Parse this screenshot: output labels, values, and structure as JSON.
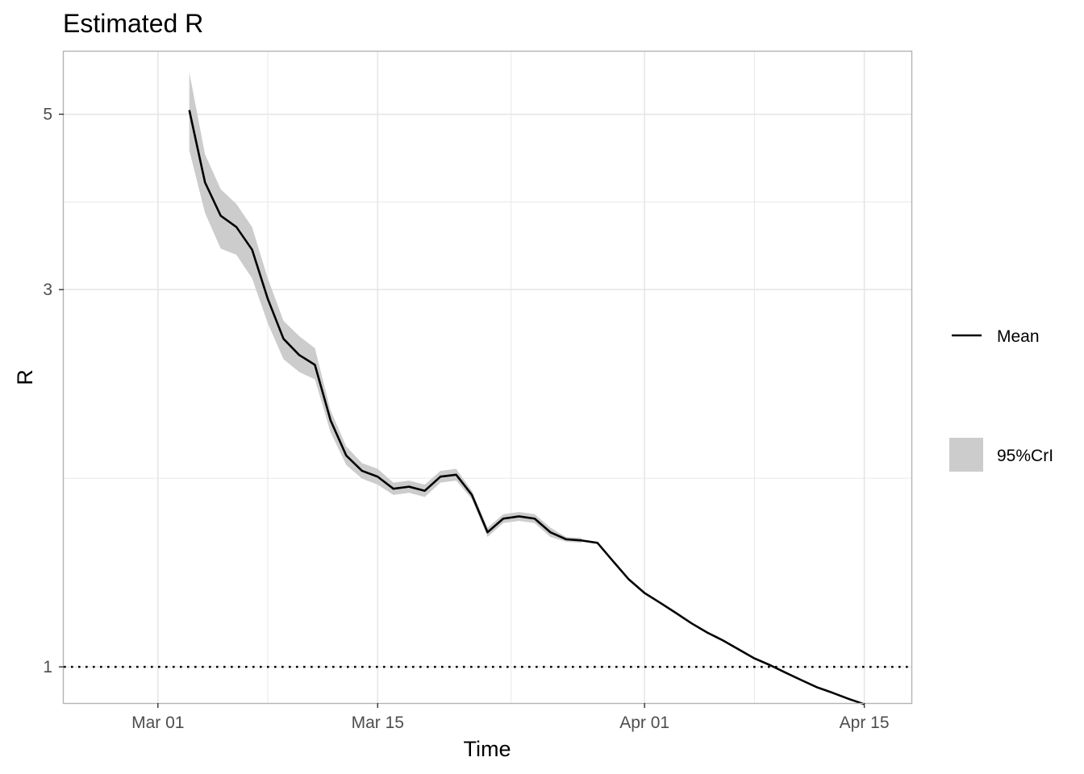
{
  "chart_data": {
    "type": "line",
    "title": "Estimated R",
    "xlabel": "Time",
    "ylabel": "R",
    "y_scale": "log",
    "xlim": [
      "2020-02-24",
      "2020-04-18"
    ],
    "ylim": [
      0.9,
      6.0
    ],
    "x_ticks": [
      {
        "date": "2020-03-01",
        "label": "Mar 01"
      },
      {
        "date": "2020-03-15",
        "label": "Mar 15"
      },
      {
        "date": "2020-04-01",
        "label": "Apr 01"
      },
      {
        "date": "2020-04-15",
        "label": "Apr 15"
      }
    ],
    "y_ticks": [
      1,
      3,
      5
    ],
    "reference_line": {
      "y": 1,
      "style": "dotted"
    },
    "grid": true,
    "legend_position": "right",
    "legend": {
      "mean_label": "Mean",
      "crl_label": "95%CrI"
    },
    "colors": {
      "mean_line": "#000000",
      "band": "#cccccc",
      "grid": "#e6e6e6",
      "panel_border": "#b3b3b3"
    },
    "series": [
      {
        "name": "Mean",
        "x": [
          "2020-03-03",
          "2020-03-04",
          "2020-03-05",
          "2020-03-06",
          "2020-03-07",
          "2020-03-08",
          "2020-03-09",
          "2020-03-10",
          "2020-03-11",
          "2020-03-12",
          "2020-03-13",
          "2020-03-14",
          "2020-03-15",
          "2020-03-16",
          "2020-03-17",
          "2020-03-18",
          "2020-03-19",
          "2020-03-20",
          "2020-03-21",
          "2020-03-22",
          "2020-03-23",
          "2020-03-24",
          "2020-03-25",
          "2020-03-26",
          "2020-03-27",
          "2020-03-28",
          "2020-03-29",
          "2020-03-30",
          "2020-03-31",
          "2020-04-01",
          "2020-04-02",
          "2020-04-03",
          "2020-04-04",
          "2020-04-05",
          "2020-04-06",
          "2020-04-07",
          "2020-04-08",
          "2020-04-09",
          "2020-04-10",
          "2020-04-11",
          "2020-04-12",
          "2020-04-13",
          "2020-04-14",
          "2020-04-15"
        ],
        "values": [
          5.06,
          4.1,
          3.72,
          3.6,
          3.37,
          2.92,
          2.6,
          2.48,
          2.41,
          2.05,
          1.85,
          1.77,
          1.74,
          1.68,
          1.69,
          1.67,
          1.74,
          1.75,
          1.65,
          1.48,
          1.54,
          1.55,
          1.54,
          1.48,
          1.45,
          1.445,
          1.435,
          1.36,
          1.29,
          1.24,
          1.205,
          1.17,
          1.135,
          1.105,
          1.08,
          1.052,
          1.025,
          1.005,
          0.983,
          0.962,
          0.942,
          0.927,
          0.911,
          0.897
        ]
      },
      {
        "name": "95%CrI",
        "x": [
          "2020-03-03",
          "2020-03-04",
          "2020-03-05",
          "2020-03-06",
          "2020-03-07",
          "2020-03-08",
          "2020-03-09",
          "2020-03-10",
          "2020-03-11",
          "2020-03-12",
          "2020-03-13",
          "2020-03-14",
          "2020-03-15",
          "2020-03-16",
          "2020-03-17",
          "2020-03-18",
          "2020-03-19",
          "2020-03-20",
          "2020-03-21",
          "2020-03-22",
          "2020-03-23",
          "2020-03-24",
          "2020-03-25",
          "2020-03-26",
          "2020-03-27",
          "2020-03-28"
        ],
        "lower": [
          4.5,
          3.75,
          3.38,
          3.32,
          3.1,
          2.72,
          2.45,
          2.36,
          2.31,
          1.98,
          1.8,
          1.73,
          1.7,
          1.65,
          1.66,
          1.64,
          1.71,
          1.72,
          1.63,
          1.46,
          1.52,
          1.53,
          1.52,
          1.46,
          1.44,
          1.435
        ],
        "upper": [
          5.65,
          4.45,
          4.02,
          3.85,
          3.6,
          3.1,
          2.74,
          2.62,
          2.53,
          2.11,
          1.9,
          1.81,
          1.78,
          1.71,
          1.72,
          1.7,
          1.77,
          1.78,
          1.67,
          1.5,
          1.56,
          1.57,
          1.56,
          1.5,
          1.46,
          1.455
        ]
      }
    ]
  }
}
